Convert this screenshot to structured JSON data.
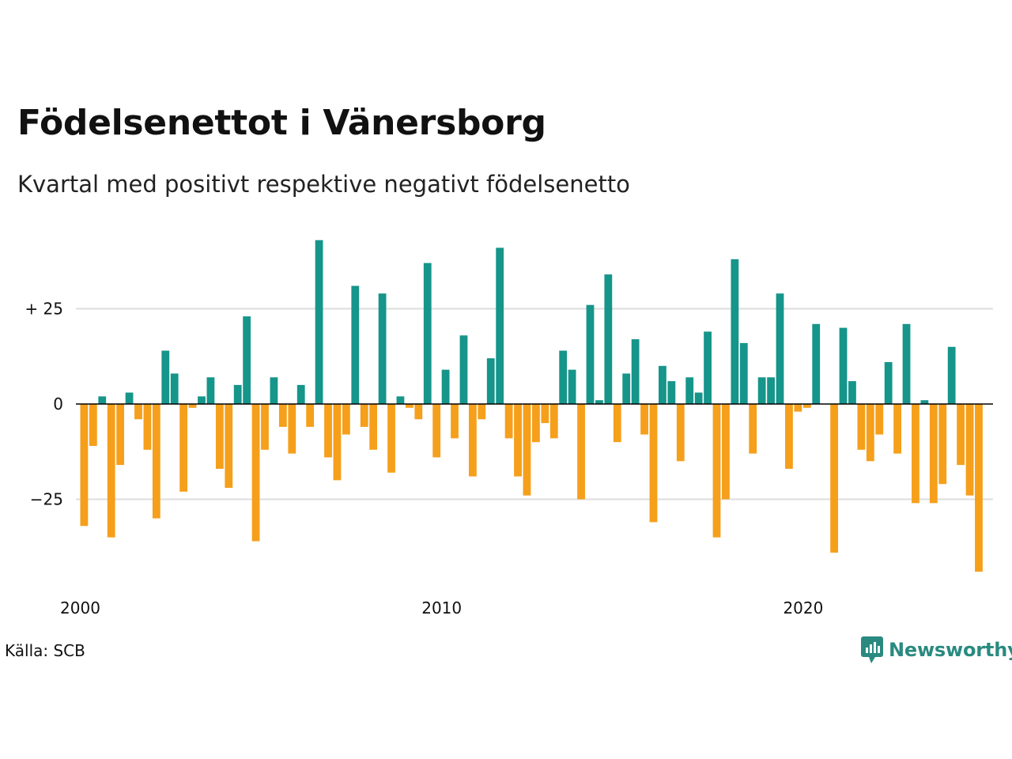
{
  "header": {
    "title": "Födelsenettot i Vänersborg",
    "subtitle": "Kvartal med positivt respektive negativt födelsenetto"
  },
  "footer": {
    "source": "Källa: SCB",
    "brand": "Newsworthy"
  },
  "colors": {
    "positive": "#16958a",
    "negative": "#f59f1b",
    "gridline": "#dddddd",
    "zero_line": "#000000",
    "brand": "#2a8a80"
  },
  "icons": {
    "brand_logo": "newsworthy-chart-bubble-icon"
  },
  "chart_data": {
    "type": "bar",
    "title": "Födelsenettot i Vänersborg",
    "subtitle": "Kvartal med positivt respektive negativt födelsenetto",
    "x_start": 2000,
    "x_unit": "quarter",
    "x_ticks": [
      {
        "value": 2000,
        "label": "2000"
      },
      {
        "value": 2010,
        "label": "2010"
      },
      {
        "value": 2020,
        "label": "2020"
      }
    ],
    "y_ticks": [
      {
        "value": 25,
        "label": "+ 25"
      },
      {
        "value": 0,
        "label": "0"
      },
      {
        "value": -25,
        "label": "−25"
      }
    ],
    "ylim": [
      -45,
      45
    ],
    "grid": true,
    "values": [
      -32,
      -11,
      2,
      -35,
      -16,
      3,
      -4,
      -12,
      -30,
      14,
      8,
      -23,
      -1,
      2,
      7,
      -17,
      -22,
      5,
      23,
      -36,
      -12,
      7,
      -6,
      -13,
      5,
      -6,
      43,
      -14,
      -20,
      -8,
      31,
      -6,
      -12,
      29,
      -18,
      2,
      -1,
      -4,
      37,
      -14,
      9,
      -9,
      18,
      -19,
      -4,
      12,
      41,
      -9,
      -19,
      -24,
      -10,
      -5,
      -9,
      14,
      9,
      -25,
      26,
      1,
      34,
      -10,
      8,
      17,
      -8,
      -31,
      10,
      6,
      -15,
      7,
      3,
      19,
      -35,
      -25,
      38,
      16,
      -13,
      7,
      7,
      29,
      -17,
      -2,
      -1,
      21,
      0,
      -39,
      20,
      6,
      -12,
      -15,
      -8,
      11,
      -13,
      21,
      -26,
      1,
      -26,
      -21,
      15,
      -16,
      -24,
      -44
    ]
  }
}
